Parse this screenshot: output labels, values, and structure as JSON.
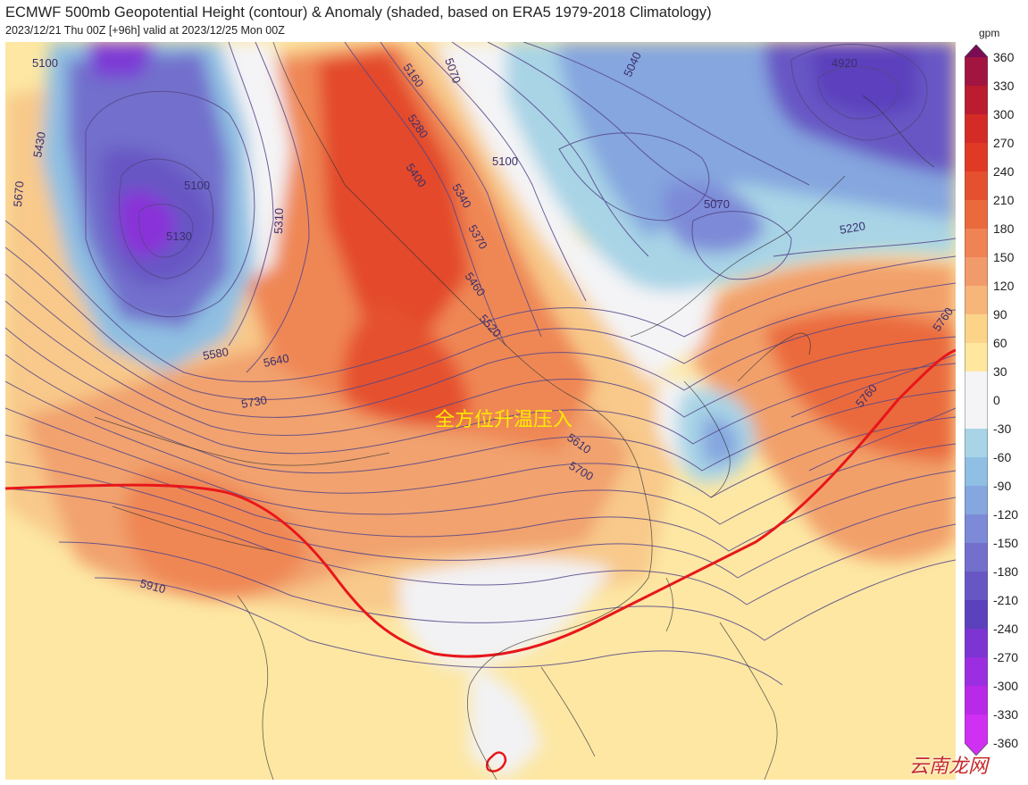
{
  "header": {
    "title": "ECMWF 500mb Geopotential Height (contour) & Anomaly (shaded, based on ERA5 1979-2018 Climatology)",
    "subtitle": "2023/12/21 Thu 00Z [+96h] valid at 2023/12/25 Mon 00Z"
  },
  "colorbar": {
    "unit": "gpm",
    "ticks": [
      "360",
      "330",
      "300",
      "270",
      "240",
      "210",
      "180",
      "150",
      "120",
      "90",
      "60",
      "30",
      "0",
      "-30",
      "-60",
      "-90",
      "-120",
      "-150",
      "-180",
      "-210",
      "-240",
      "-270",
      "-300",
      "-330",
      "-360"
    ],
    "colors": [
      "#7a0b55",
      "#a11540",
      "#bb1c30",
      "#d42b26",
      "#e03a24",
      "#e5512e",
      "#ea6a3c",
      "#ef8353",
      "#f29b6a",
      "#f6b679",
      "#fbd489",
      "#ffe7a0",
      "#f4f4f6",
      "#f4f4f6",
      "#a8d4e6",
      "#8fbfe2",
      "#85a6df",
      "#7d8ad8",
      "#7270cc",
      "#6757c4",
      "#5c41bd",
      "#7c34d2",
      "#9b2ee0",
      "#b82ae8",
      "#d030f2"
    ]
  },
  "map": {
    "annotation": "全方位升温压入",
    "watermark": "云南龙网",
    "contour_labels": [
      "5100",
      "5130",
      "5100",
      "5130",
      "5430",
      "5670",
      "5310",
      "5580",
      "5640",
      "5730",
      "5400",
      "5340",
      "5370",
      "5460",
      "5520",
      "5610",
      "5700",
      "5160",
      "5280",
      "5070",
      "5100",
      "5040",
      "5070",
      "4920",
      "5220",
      "5760",
      "5910",
      "5450",
      "5760"
    ],
    "colors": {
      "contour": "#55468a",
      "reference_line": "#e8161a",
      "coastline": "#333333"
    }
  }
}
